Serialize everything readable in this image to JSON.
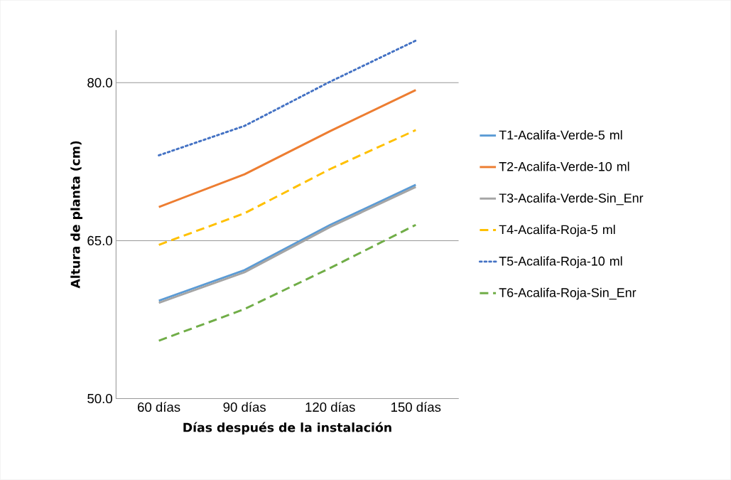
{
  "chart_data": {
    "type": "line",
    "xlabel": "Días después de la instalación",
    "ylabel": "Altura de planta (cm)",
    "categories": [
      "60 días",
      "90 días",
      "120 días",
      "150 días"
    ],
    "ylim": [
      50,
      85
    ],
    "yticks": [
      {
        "value": 50,
        "label": "50.0"
      },
      {
        "value": 65,
        "label": "65.0"
      },
      {
        "value": 80,
        "label": "80.0"
      }
    ],
    "grid": "y",
    "legend": "right",
    "series": [
      {
        "name": "T1-Acalifa-Verde-5 ml",
        "color": "#5b9bd5",
        "line_style": "solid",
        "values": [
          59.3,
          62.2,
          66.5,
          70.3
        ]
      },
      {
        "name": "T2-Acalifa-Verde-10 ml",
        "color": "#ed7d31",
        "line_style": "solid",
        "values": [
          68.2,
          71.3,
          75.4,
          79.3
        ]
      },
      {
        "name": "T3-Acalifa-Verde-Sin_Enr",
        "color": "#a5a5a5",
        "line_style": "solid",
        "values": [
          59.1,
          62.0,
          66.3,
          70.1
        ]
      },
      {
        "name": "T4-Acalifa-Roja-5 ml",
        "color": "#ffc000",
        "line_style": "dashed",
        "values": [
          64.6,
          67.6,
          71.8,
          75.5
        ]
      },
      {
        "name": "T5-Acalifa-Roja-10 ml",
        "color": "#4472c4",
        "line_style": "dotted",
        "values": [
          73.1,
          75.9,
          80.1,
          84.0
        ]
      },
      {
        "name": "T6-Acalifa-Roja-Sin_Enr",
        "color": "#70ad47",
        "line_style": "dashed",
        "values": [
          55.5,
          58.5,
          62.4,
          66.5
        ]
      }
    ]
  }
}
